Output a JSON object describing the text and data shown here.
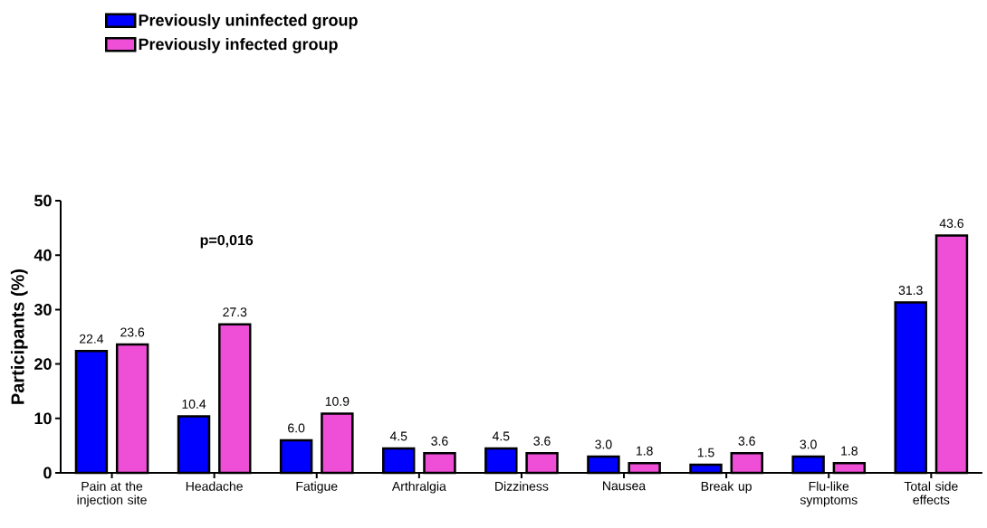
{
  "chart_data": {
    "type": "bar",
    "categories": [
      "Pain at the injection site",
      "Headache",
      "Fatigue",
      "Arthralgia",
      "Dizziness",
      "Nausea",
      "Break up",
      "Flu-like symptoms",
      "Total side effects"
    ],
    "series": [
      {
        "name": "Previously uninfected group",
        "color": "#0000ff",
        "values": [
          22.4,
          10.4,
          6.0,
          4.5,
          4.5,
          3.0,
          1.5,
          3.0,
          31.3
        ],
        "value_labels": [
          "22.4",
          "10.4",
          "6.0",
          "4.5",
          "4.5",
          "3.0",
          "1.5",
          "3.0",
          "31.3"
        ]
      },
      {
        "name": "Previously infected group",
        "color": "#ee4fd6",
        "values": [
          23.6,
          27.3,
          10.9,
          3.6,
          3.6,
          1.8,
          3.6,
          1.8,
          43.6
        ],
        "value_labels": [
          "23.6",
          "27.3",
          "10.9",
          "3.6",
          "3.6",
          "1.8",
          "3.6",
          "1.8",
          "43.6"
        ]
      }
    ],
    "ylabel": "Participants (%)",
    "ylim": [
      0,
      50
    ],
    "yticks": [
      0,
      10,
      20,
      30,
      40,
      50
    ],
    "annotations": [
      "**p=0,016**"
    ],
    "grid": false,
    "legend": "top left"
  }
}
